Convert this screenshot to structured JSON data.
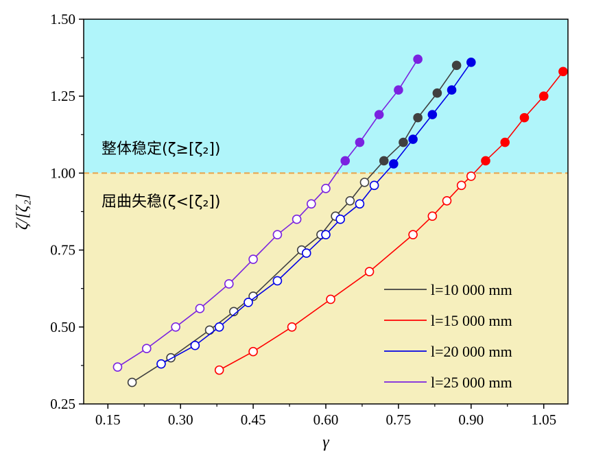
{
  "chart_data": {
    "type": "line",
    "xlabel": "γ",
    "ylabel": "ζ/[ζ₂]",
    "xlim": [
      0.1,
      1.1
    ],
    "ylim": [
      0.25,
      1.5
    ],
    "xticks": [
      "0.15",
      "0.30",
      "0.45",
      "0.60",
      "0.75",
      "0.90",
      "1.05"
    ],
    "yticks": [
      "0.25",
      "0.50",
      "0.75",
      "1.00",
      "1.25",
      "1.50"
    ],
    "threshold": 1.0,
    "regions": {
      "stable": {
        "label": "整体稳定(ζ≥[ζ₂])",
        "color": "#b0f5fa"
      },
      "buckling": {
        "label": "屈曲失稳(ζ<[ζ₂])",
        "color": "#f6efbd"
      }
    },
    "threshold_color": "#e8a34a",
    "legend_position": "bottom-right",
    "series": [
      {
        "name": "l=10 000 mm",
        "color": "#404040",
        "x": [
          0.2,
          0.28,
          0.36,
          0.41,
          0.45,
          0.55,
          0.59,
          0.62,
          0.65,
          0.68,
          0.72,
          0.76,
          0.79,
          0.83,
          0.87
        ],
        "y": [
          0.32,
          0.4,
          0.49,
          0.55,
          0.6,
          0.75,
          0.8,
          0.86,
          0.91,
          0.97,
          1.04,
          1.1,
          1.18,
          1.26,
          1.35
        ]
      },
      {
        "name": "l=15 000 mm",
        "color": "#ff0000",
        "x": [
          0.38,
          0.45,
          0.53,
          0.61,
          0.69,
          0.78,
          0.82,
          0.85,
          0.88,
          0.9,
          0.93,
          0.97,
          1.01,
          1.05,
          1.09
        ],
        "y": [
          0.36,
          0.42,
          0.5,
          0.59,
          0.68,
          0.8,
          0.86,
          0.91,
          0.96,
          0.99,
          1.04,
          1.1,
          1.18,
          1.25,
          1.33
        ]
      },
      {
        "name": "l=20 000 mm",
        "color": "#0000e6",
        "x": [
          0.26,
          0.33,
          0.38,
          0.44,
          0.5,
          0.56,
          0.6,
          0.63,
          0.67,
          0.7,
          0.74,
          0.78,
          0.82,
          0.86,
          0.9
        ],
        "y": [
          0.38,
          0.44,
          0.5,
          0.58,
          0.65,
          0.74,
          0.8,
          0.85,
          0.9,
          0.96,
          1.03,
          1.11,
          1.19,
          1.27,
          1.36
        ]
      },
      {
        "name": "l=25 000 mm",
        "color": "#7a22e0",
        "x": [
          0.17,
          0.23,
          0.29,
          0.34,
          0.4,
          0.45,
          0.5,
          0.54,
          0.57,
          0.6,
          0.64,
          0.67,
          0.71,
          0.75,
          0.79
        ],
        "y": [
          0.37,
          0.43,
          0.5,
          0.56,
          0.64,
          0.72,
          0.8,
          0.85,
          0.9,
          0.95,
          1.04,
          1.1,
          1.19,
          1.27,
          1.37
        ]
      }
    ]
  }
}
